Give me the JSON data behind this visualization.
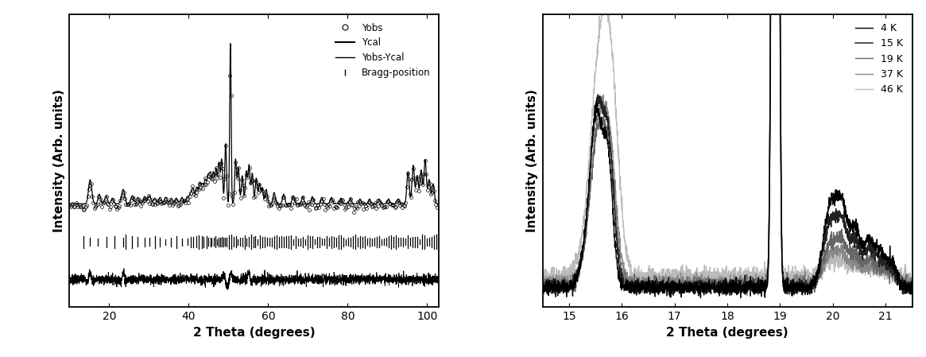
{
  "left_panel": {
    "xlabel": "2 Theta (degrees)",
    "ylabel": "Intensity (Arb. units)",
    "xlim": [
      10,
      103
    ],
    "xticks": [
      20,
      40,
      60,
      80,
      100
    ],
    "legend_labels": [
      "Yobs",
      "Ycal",
      "Yobs-Ycal",
      "Bragg-position"
    ],
    "bragg_positions": [
      13.5,
      15.2,
      17.1,
      19.3,
      21.4,
      23.5,
      24.1,
      25.8,
      27.2,
      28.9,
      30.1,
      31.5,
      32.8,
      34.2,
      35.6,
      36.9,
      38.3,
      39.7,
      40.5,
      41.1,
      42.0,
      42.5,
      43.3,
      43.8,
      44.5,
      44.9,
      45.5,
      45.8,
      46.3,
      46.7,
      47.2,
      47.5,
      48.0,
      48.3,
      48.8,
      49.1,
      49.6,
      50.2,
      50.7,
      51.3,
      51.9,
      52.4,
      53.0,
      53.5,
      54.1,
      54.6,
      55.2,
      55.7,
      56.3,
      56.8,
      57.4,
      57.9,
      58.5,
      59.1,
      59.8,
      60.3,
      61.0,
      61.5,
      62.2,
      62.7,
      63.4,
      63.9,
      64.6,
      65.1,
      65.8,
      66.3,
      67.0,
      67.5,
      68.2,
      68.7,
      69.4,
      69.9,
      70.6,
      71.1,
      71.8,
      72.3,
      73.0,
      73.5,
      74.2,
      74.7,
      75.4,
      75.9,
      76.6,
      77.1,
      77.8,
      78.3,
      79.0,
      79.5,
      80.2,
      80.7,
      81.4,
      81.9,
      82.6,
      83.1,
      83.8,
      84.3,
      85.0,
      85.5,
      86.2,
      86.7,
      87.4,
      87.9,
      88.6,
      89.1,
      89.8,
      90.3,
      91.0,
      91.5,
      92.2,
      92.7,
      93.4,
      93.9,
      94.6,
      95.1,
      95.8,
      96.3,
      97.0,
      97.5,
      98.2,
      98.7,
      99.4,
      99.9,
      100.5,
      101.1,
      101.8,
      102.4
    ]
  },
  "right_panel": {
    "xlabel": "2 Theta (degrees)",
    "ylabel": "Intensity (Arb. units)",
    "xlim": [
      14.5,
      21.5
    ],
    "xticks": [
      15,
      16,
      17,
      18,
      19,
      20,
      21
    ],
    "temperatures": [
      "4 K",
      "15 K",
      "19 K",
      "37 K",
      "46 K"
    ],
    "colors": [
      "#000000",
      "#111111",
      "#555555",
      "#888888",
      "#bbbbbb"
    ]
  },
  "background_color": "#ffffff"
}
